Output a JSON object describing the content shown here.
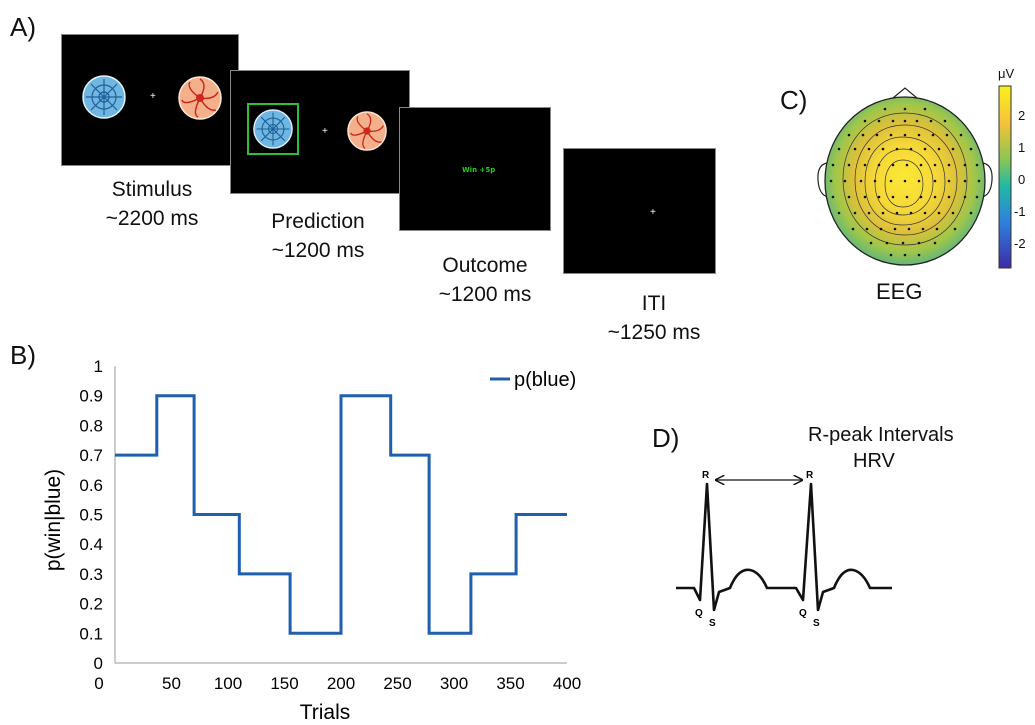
{
  "panels": {
    "a": "A)",
    "b": "B)",
    "c": "C)",
    "d": "D)"
  },
  "task": {
    "outcome_screen_text": "Win +5p",
    "fixation": "+",
    "phases": [
      {
        "name": "Stimulus",
        "duration": "~2200 ms"
      },
      {
        "name": "Prediction",
        "duration": "~1200 ms"
      },
      {
        "name": "Outcome",
        "duration": "~1200 ms"
      },
      {
        "name": "ITI",
        "duration": "~1250 ms"
      }
    ],
    "stimulus_colors": {
      "blue": "#6fb6e0",
      "red": "#e8603a",
      "selection_box": "#2fbf2f"
    }
  },
  "eeg": {
    "label": "EEG",
    "colorbar_unit": "μV",
    "colorbar_ticks": [
      "2",
      "1",
      "0",
      "-1",
      "-2"
    ]
  },
  "hrv": {
    "title_line1": "R-peak Intervals",
    "title_line2": "HRV",
    "wave_labels": {
      "r": "R",
      "q": "Q",
      "s": "S"
    }
  },
  "chart_data": {
    "type": "line",
    "step": true,
    "series": [
      {
        "name": "p(blue)",
        "color": "#1f5fb0",
        "x": [
          0,
          37,
          37,
          70,
          70,
          110,
          110,
          155,
          155,
          200,
          200,
          244,
          244,
          278,
          278,
          315,
          315,
          355,
          355,
          400
        ],
        "y": [
          0.7,
          0.7,
          0.9,
          0.9,
          0.5,
          0.5,
          0.3,
          0.3,
          0.1,
          0.1,
          0.9,
          0.9,
          0.7,
          0.7,
          0.1,
          0.1,
          0.3,
          0.3,
          0.5,
          0.5
        ]
      }
    ],
    "xlabel": "Trials",
    "ylabel": "p(win|blue)",
    "xlim": [
      0,
      400
    ],
    "ylim": [
      0,
      1
    ],
    "xticks": [
      0,
      50,
      100,
      150,
      200,
      250,
      300,
      350,
      400
    ],
    "yticks": [
      0,
      0.1,
      0.2,
      0.3,
      0.4,
      0.5,
      0.6,
      0.7,
      0.8,
      0.9,
      1
    ],
    "ytick_labels": [
      "0",
      "0.1",
      "0.2",
      "0.3",
      "0.4",
      "0.5",
      "0.6",
      "0.7",
      "0.8",
      "0.9",
      "1"
    ],
    "legend_position": "top-right",
    "grid": false
  }
}
